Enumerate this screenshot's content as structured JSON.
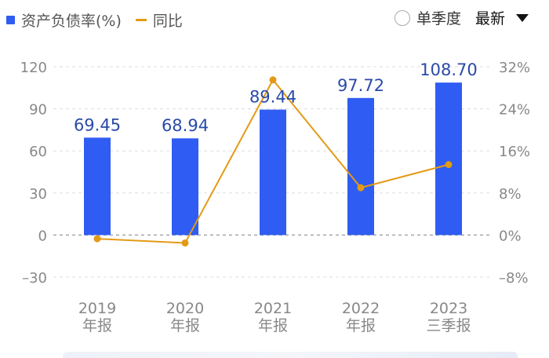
{
  "legend": {
    "bar_label": "资产负债率(%)",
    "line_label": "同比"
  },
  "controls": {
    "single_quarter_label": "单季度",
    "dropdown_label": "最新"
  },
  "colors": {
    "bar": "#2f5cf2",
    "line": "#e39a14",
    "value_label": "#2a4aa8",
    "axis_text": "#888888",
    "grid": "#dddddd"
  },
  "chart_data": {
    "type": "bar",
    "categories": [
      [
        "2019",
        "年报"
      ],
      [
        "2020",
        "年报"
      ],
      [
        "2021",
        "年报"
      ],
      [
        "2022",
        "年报"
      ],
      [
        "2023",
        "三季报"
      ]
    ],
    "series": [
      {
        "name": "资产负债率(%)",
        "type": "bar",
        "axis": "left",
        "values": [
          69.45,
          68.94,
          89.44,
          97.72,
          108.7
        ],
        "labels": [
          "69.45",
          "68.94",
          "89.44",
          "97.72",
          "108.70"
        ]
      },
      {
        "name": "同比",
        "type": "line",
        "axis": "right",
        "values": [
          -0.7,
          -1.5,
          29.5,
          9.0,
          13.4
        ]
      }
    ],
    "y_left": {
      "min": -30,
      "max": 120,
      "ticks": [
        120,
        90,
        60,
        30,
        0,
        -30
      ]
    },
    "y_right": {
      "min": -8,
      "max": 32,
      "ticks": [
        "32%",
        "24%",
        "16%",
        "8%",
        "0%",
        "-8%"
      ]
    },
    "grid": true
  }
}
